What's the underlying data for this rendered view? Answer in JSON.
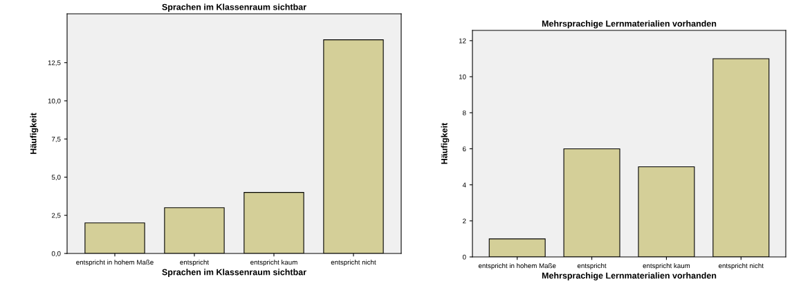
{
  "chart_data": [
    {
      "type": "bar",
      "title": "Sprachen im Klassenraum sichtbar",
      "xlabel": "Sprachen im Klassenraum sichtbar",
      "ylabel": "Häufigkeit",
      "categories": [
        "entspricht in hohem Maße",
        "entspricht",
        "entspricht kaum",
        "entspricht nicht"
      ],
      "values": [
        2,
        3,
        4,
        14
      ],
      "color": "#d4cf98",
      "ylim": [
        0,
        15.7
      ],
      "yticks": [
        {
          "value": 0,
          "label": "0,0"
        },
        {
          "value": 2.5,
          "label": "2,5"
        },
        {
          "value": 5,
          "label": "5,0"
        },
        {
          "value": 7.5,
          "label": "7,5"
        },
        {
          "value": 10,
          "label": "10,0"
        },
        {
          "value": 12.5,
          "label": "12,5"
        }
      ],
      "grid": false
    },
    {
      "type": "bar",
      "title": "Mehrsprachige Lernmaterialien vorhanden",
      "xlabel": "Mehrsprachige Lernmaterialien vorhanden",
      "ylabel": "Häufigkeit",
      "categories": [
        "entspricht in hohem Maße",
        "entspricht",
        "entspricht kaum",
        "entspricht nicht"
      ],
      "values": [
        1,
        6,
        5,
        11
      ],
      "color": "#d4cf98",
      "ylim": [
        0,
        12.57
      ],
      "yticks": [
        0,
        2,
        4,
        6,
        8,
        10,
        12
      ],
      "grid": false
    }
  ]
}
